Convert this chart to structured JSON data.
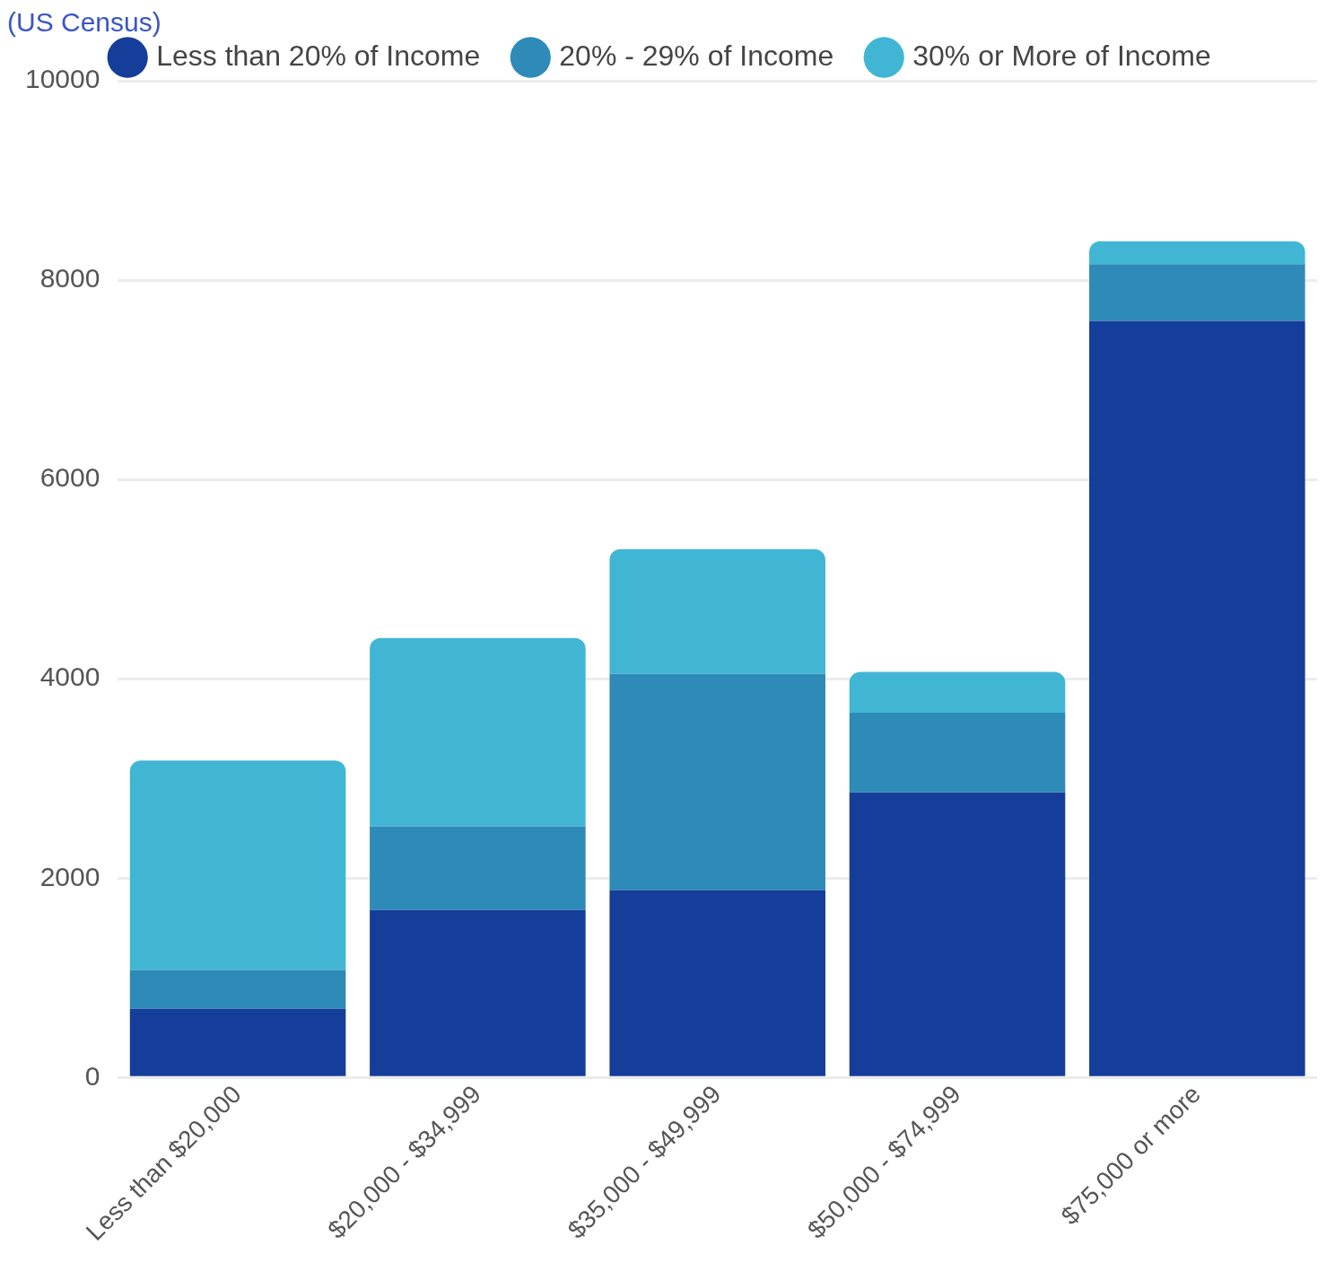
{
  "chart_data": {
    "type": "bar",
    "subtitle": "(US Census)",
    "categories": [
      "Less than $20,000",
      "$20,000 - $34,999",
      "$35,000 - $49,999",
      "$50,000 - $74,999",
      "$75,000 or more"
    ],
    "stacked": true,
    "series": [
      {
        "name": "Less than 20% of Income",
        "color": "#153e9a",
        "values": [
          690,
          1680,
          1880,
          2860,
          7590
        ]
      },
      {
        "name": "20% - 29% of Income",
        "color": "#2e8bb8",
        "values": [
          390,
          840,
          2170,
          800,
          570
        ]
      },
      {
        "name": "30% or More of Income",
        "color": "#41b6d4",
        "values": [
          2100,
          1890,
          1250,
          410,
          230
        ]
      }
    ],
    "ylim": [
      0,
      10000
    ],
    "yticks": [
      0,
      2000,
      4000,
      6000,
      8000,
      10000
    ],
    "grid": "y",
    "legend": "top"
  }
}
